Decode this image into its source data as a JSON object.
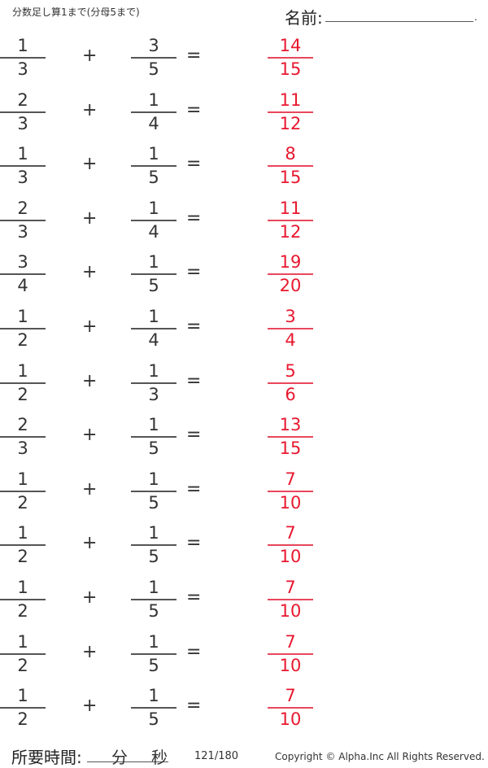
{
  "header": {
    "title": "分数足し算1まで(分母5まで)",
    "name_label": "名前:",
    "name_end": "."
  },
  "operators": {
    "plus": "+",
    "equals": "="
  },
  "problems": [
    {
      "a": [
        "1",
        "3"
      ],
      "b": [
        "3",
        "5"
      ],
      "answer": [
        "14",
        "15"
      ]
    },
    {
      "a": [
        "2",
        "3"
      ],
      "b": [
        "1",
        "4"
      ],
      "answer": [
        "11",
        "12"
      ]
    },
    {
      "a": [
        "1",
        "3"
      ],
      "b": [
        "1",
        "5"
      ],
      "answer": [
        "8",
        "15"
      ]
    },
    {
      "a": [
        "2",
        "3"
      ],
      "b": [
        "1",
        "4"
      ],
      "answer": [
        "11",
        "12"
      ]
    },
    {
      "a": [
        "3",
        "4"
      ],
      "b": [
        "1",
        "5"
      ],
      "answer": [
        "19",
        "20"
      ]
    },
    {
      "a": [
        "1",
        "2"
      ],
      "b": [
        "1",
        "4"
      ],
      "answer": [
        "3",
        "4"
      ]
    },
    {
      "a": [
        "1",
        "2"
      ],
      "b": [
        "1",
        "3"
      ],
      "answer": [
        "5",
        "6"
      ]
    },
    {
      "a": [
        "2",
        "3"
      ],
      "b": [
        "1",
        "5"
      ],
      "answer": [
        "13",
        "15"
      ]
    },
    {
      "a": [
        "1",
        "2"
      ],
      "b": [
        "1",
        "5"
      ],
      "answer": [
        "7",
        "10"
      ]
    },
    {
      "a": [
        "1",
        "2"
      ],
      "b": [
        "1",
        "5"
      ],
      "answer": [
        "7",
        "10"
      ]
    },
    {
      "a": [
        "1",
        "2"
      ],
      "b": [
        "1",
        "5"
      ],
      "answer": [
        "7",
        "10"
      ]
    },
    {
      "a": [
        "1",
        "2"
      ],
      "b": [
        "1",
        "5"
      ],
      "answer": [
        "7",
        "10"
      ]
    },
    {
      "a": [
        "1",
        "2"
      ],
      "b": [
        "1",
        "5"
      ],
      "answer": [
        "7",
        "10"
      ]
    }
  ],
  "footer": {
    "time_label": "所要時間:",
    "minutes": "分",
    "seconds": "秒",
    "page": "121/180",
    "copyright": "Copyright ©  Alpha.Inc All Rights Reserved."
  },
  "colors": {
    "answer": "#e8182f",
    "text": "#333333"
  }
}
